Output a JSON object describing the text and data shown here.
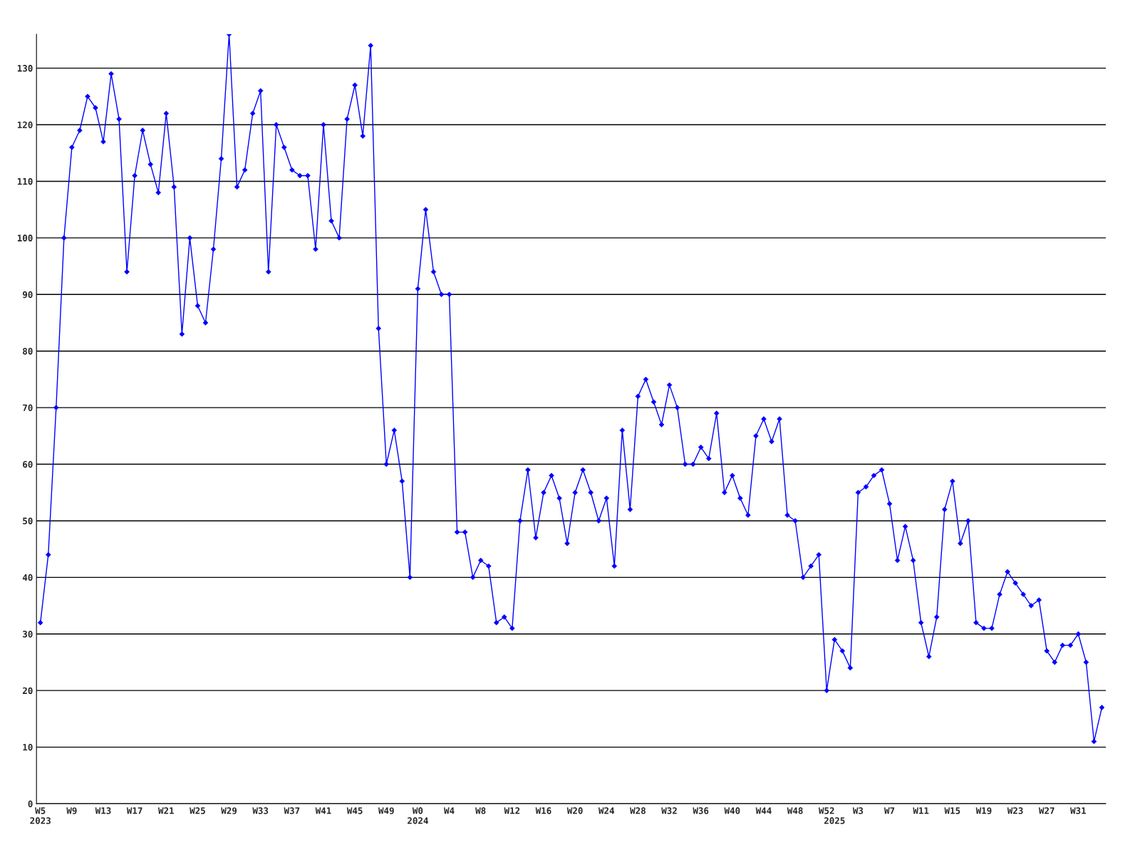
{
  "chart_data": {
    "type": "line",
    "categories": [
      "W5\n2023",
      null,
      null,
      null,
      "W9",
      null,
      null,
      null,
      "W13",
      null,
      null,
      null,
      "W17",
      null,
      null,
      null,
      "W21",
      null,
      null,
      null,
      "W25",
      null,
      null,
      null,
      "W29",
      null,
      null,
      null,
      "W33",
      null,
      null,
      null,
      "W37",
      null,
      null,
      null,
      "W41",
      null,
      null,
      null,
      "W45",
      null,
      null,
      null,
      "W49",
      null,
      null,
      null,
      "W0\n2024",
      null,
      null,
      null,
      "W4",
      null,
      null,
      null,
      "W8",
      null,
      null,
      null,
      "W12",
      null,
      null,
      null,
      "W16",
      null,
      null,
      null,
      "W20",
      null,
      null,
      null,
      "W24",
      null,
      null,
      null,
      "W28",
      null,
      null,
      null,
      "W32",
      null,
      null,
      null,
      "W36",
      null,
      null,
      null,
      "W40",
      null,
      null,
      null,
      "W44",
      null,
      null,
      null,
      "W48",
      null,
      null,
      null,
      "W52",
      "\n2025",
      null,
      null,
      "W3",
      null,
      null,
      null,
      "W7",
      null,
      null,
      null,
      "W11",
      null,
      null,
      null,
      "W15",
      null,
      null,
      null,
      "W19",
      null,
      null,
      null,
      "W23",
      null,
      null,
      null,
      "W27",
      null,
      null,
      null,
      "W31",
      null,
      null,
      null
    ],
    "series": [
      {
        "color": "#0000ff",
        "values": [
          32,
          44,
          70,
          100,
          116,
          119,
          125,
          123,
          117,
          129,
          121,
          94,
          111,
          119,
          113,
          108,
          122,
          109,
          83,
          100,
          88,
          85,
          98,
          114,
          136,
          109,
          112,
          122,
          126,
          94,
          120,
          116,
          112,
          111,
          111,
          98,
          120,
          103,
          100,
          121,
          127,
          118,
          134,
          84,
          60,
          66,
          57,
          40,
          91,
          105,
          94,
          90,
          90,
          48,
          48,
          40,
          43,
          42,
          32,
          33,
          31,
          50,
          59,
          47,
          55,
          58,
          54,
          46,
          55,
          59,
          55,
          50,
          54,
          42,
          66,
          52,
          72,
          75,
          71,
          67,
          74,
          70,
          60,
          60,
          63,
          61,
          69,
          55,
          58,
          54,
          51,
          65,
          68,
          64,
          68,
          51,
          50,
          40,
          42,
          44,
          20,
          29,
          27,
          24,
          55,
          56,
          58,
          59,
          53,
          43,
          49,
          43,
          32,
          26,
          33,
          52,
          57,
          46,
          50,
          32,
          31,
          31,
          37,
          41,
          39,
          37,
          35,
          36,
          27,
          25,
          28,
          28,
          30,
          25,
          11,
          17
        ]
      }
    ],
    "ylim": [
      0,
      136
    ],
    "yticks": [
      0,
      10,
      20,
      30,
      40,
      50,
      60,
      70,
      80,
      90,
      100,
      110,
      120,
      130
    ],
    "grid": "y",
    "marker": "diamond",
    "line_style": "solid"
  }
}
